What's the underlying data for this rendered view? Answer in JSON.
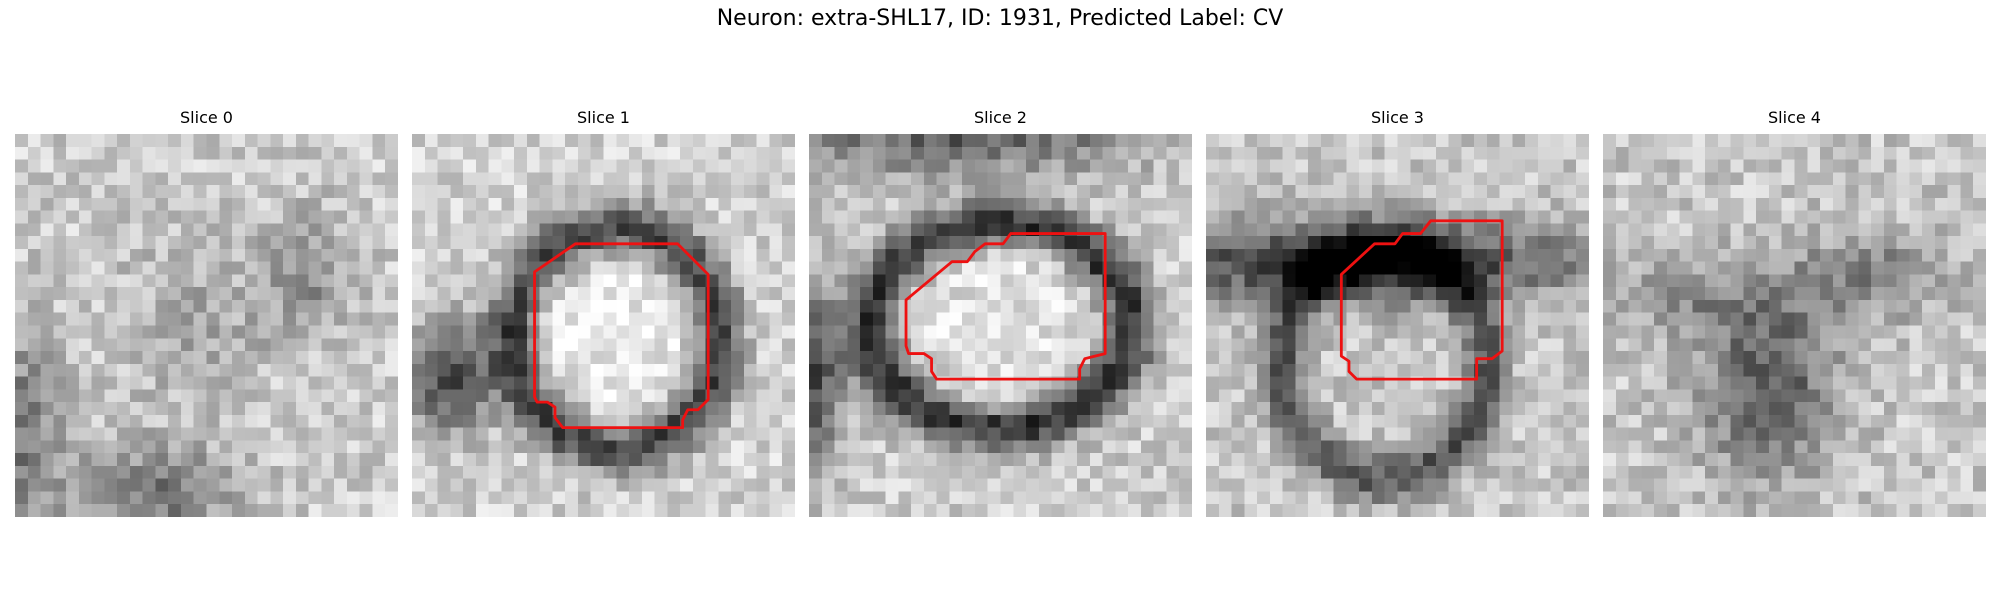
{
  "figure": {
    "title": "Neuron: extra-SHL17, ID: 1931, Predicted Label: CV"
  },
  "panels": [
    {
      "title": "Slice 0"
    },
    {
      "title": "Slice 1"
    },
    {
      "title": "Slice 2"
    },
    {
      "title": "Slice 3"
    },
    {
      "title": "Slice 4"
    }
  ],
  "colors": {
    "contour": "#ee1111",
    "background": "#ffffff"
  }
}
